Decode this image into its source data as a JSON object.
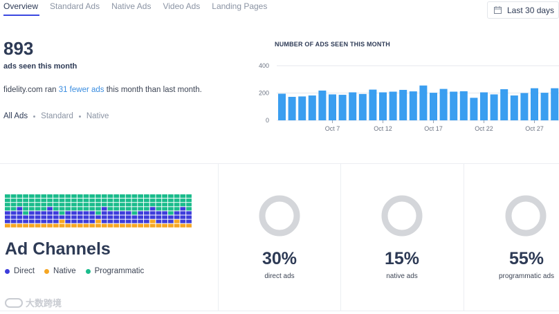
{
  "tabs": [
    {
      "label": "Overview",
      "active": true
    },
    {
      "label": "Standard Ads",
      "active": false
    },
    {
      "label": "Native Ads",
      "active": false
    },
    {
      "label": "Video Ads",
      "active": false
    },
    {
      "label": "Landing Pages",
      "active": false
    }
  ],
  "date_range": {
    "label": "Last 30 days",
    "icon": "calendar-icon"
  },
  "summary": {
    "count": "893",
    "count_label": "ads seen this month",
    "sentence_prefix": "fidelity.com ran ",
    "sentence_highlight": "31 fewer ads",
    "sentence_suffix": " this month than last month."
  },
  "filters": [
    "All Ads",
    "Standard",
    "Native"
  ],
  "chart_data": {
    "type": "bar",
    "title": "NUMBER OF ADS SEEN THIS MONTH",
    "ylim": [
      0,
      400
    ],
    "yticks": [
      "400",
      "200",
      "0"
    ],
    "x_tick_labels": [
      {
        "index": 5,
        "label": "Oct 7"
      },
      {
        "index": 10,
        "label": "Oct 12"
      },
      {
        "index": 15,
        "label": "Oct 17"
      },
      {
        "index": 20,
        "label": "Oct 22"
      },
      {
        "index": 25,
        "label": "Oct 27"
      }
    ],
    "values": [
      195,
      172,
      175,
      182,
      218,
      190,
      187,
      205,
      193,
      225,
      205,
      210,
      223,
      212,
      255,
      202,
      230,
      210,
      213,
      165,
      205,
      190,
      228,
      182,
      200,
      235,
      202,
      235
    ],
    "color": "#3a9ef0"
  },
  "channels": {
    "title": "Ad Channels",
    "legend": [
      {
        "label": "Direct",
        "color": "#3d3ddb"
      },
      {
        "label": "Native",
        "color": "#f5a623"
      },
      {
        "label": "Programmatic",
        "color": "#1bbc8c"
      }
    ],
    "grid_counts": {
      "programmatic": 4,
      "direct": 3,
      "native": 1
    },
    "metrics": [
      {
        "pct": "30%",
        "label": "direct ads",
        "value": 0.3,
        "color": "#3d3ddb"
      },
      {
        "pct": "15%",
        "label": "native ads",
        "value": 0.15,
        "color": "#f5a623"
      },
      {
        "pct": "55%",
        "label": "programmatic ads",
        "value": 0.55,
        "color": "#1bbc8c"
      }
    ]
  },
  "watermark": "大数跨境"
}
